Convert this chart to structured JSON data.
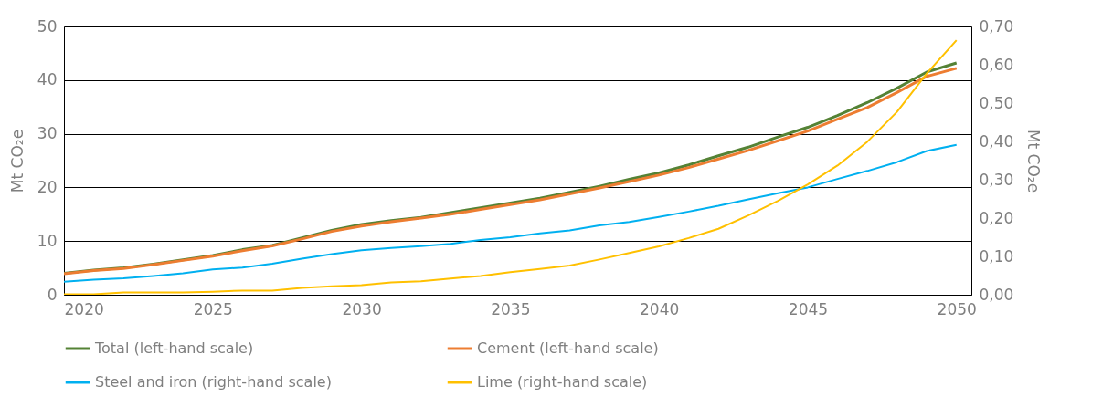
{
  "chart_data": {
    "type": "line",
    "ylabel": "Mt CO₂e",
    "y2label": "Mt CO₂e",
    "x": [
      2020,
      2021,
      2022,
      2023,
      2024,
      2025,
      2026,
      2027,
      2028,
      2029,
      2030,
      2031,
      2032,
      2033,
      2034,
      2035,
      2036,
      2037,
      2038,
      2039,
      2040,
      2041,
      2042,
      2043,
      2044,
      2045,
      2046,
      2047,
      2048,
      2049,
      2050
    ],
    "xlim": [
      2020,
      2050.5
    ],
    "xticks": [
      2020,
      2025,
      2030,
      2035,
      2040,
      2045,
      2050
    ],
    "ylim": [
      0,
      50
    ],
    "yticks": [
      0,
      10,
      20,
      30,
      40,
      50
    ],
    "y2lim": [
      0,
      0.7
    ],
    "y2ticks": [
      {
        "value": 0,
        "label": "0,00"
      },
      {
        "value": 0.1,
        "label": "0,10"
      },
      {
        "value": 0.2,
        "label": "0,20"
      },
      {
        "value": 0.3,
        "label": "0,30"
      },
      {
        "value": 0.4,
        "label": "0,40"
      },
      {
        "value": 0.5,
        "label": "0,50"
      },
      {
        "value": 0.6,
        "label": "0,60"
      },
      {
        "value": 0.7,
        "label": "0,70"
      }
    ],
    "grid": "y",
    "legend": "bottom",
    "series": [
      {
        "name": "Total (left-hand scale)",
        "color": "#548235",
        "values": [
          4.0,
          4.6,
          5.0,
          5.7,
          6.5,
          7.3,
          8.4,
          9.2,
          10.6,
          12.0,
          13.1,
          13.8,
          14.4,
          15.3,
          16.2,
          17.1,
          18.0,
          19.1,
          20.2,
          21.5,
          22.7,
          24.2,
          25.9,
          27.5,
          29.4,
          31.2,
          33.4,
          35.8,
          38.5,
          41.5,
          43.2
        ]
      },
      {
        "name": "Cement (left-hand scale)",
        "color": "#ed7d31",
        "values": [
          3.9,
          4.5,
          4.9,
          5.6,
          6.4,
          7.2,
          8.2,
          9.1,
          10.4,
          11.8,
          12.8,
          13.6,
          14.3,
          15.0,
          15.9,
          16.8,
          17.7,
          18.8,
          19.9,
          21.1,
          22.3,
          23.7,
          25.3,
          26.9,
          28.7,
          30.5,
          32.7,
          34.9,
          37.7,
          40.7,
          42.2
        ]
      },
      {
        "name": "Steel and iron (right-hand scale)",
        "color": "#00b0f0",
        "axis": "y2",
        "values": [
          0.034,
          0.039,
          0.043,
          0.049,
          0.056,
          0.066,
          0.071,
          0.081,
          0.094,
          0.106,
          0.116,
          0.122,
          0.127,
          0.133,
          0.143,
          0.15,
          0.16,
          0.168,
          0.181,
          0.19,
          0.203,
          0.217,
          0.232,
          0.249,
          0.265,
          0.28,
          0.302,
          0.323,
          0.346,
          0.375,
          0.391
        ]
      },
      {
        "name": "Lime (right-hand scale)",
        "color": "#ffc000",
        "axis": "y2",
        "values": [
          0.001,
          0.001,
          0.006,
          0.006,
          0.006,
          0.008,
          0.011,
          0.011,
          0.018,
          0.022,
          0.025,
          0.032,
          0.035,
          0.042,
          0.049,
          0.059,
          0.067,
          0.076,
          0.092,
          0.109,
          0.126,
          0.148,
          0.172,
          0.207,
          0.245,
          0.288,
          0.337,
          0.399,
          0.477,
          0.577,
          0.664
        ]
      }
    ]
  }
}
